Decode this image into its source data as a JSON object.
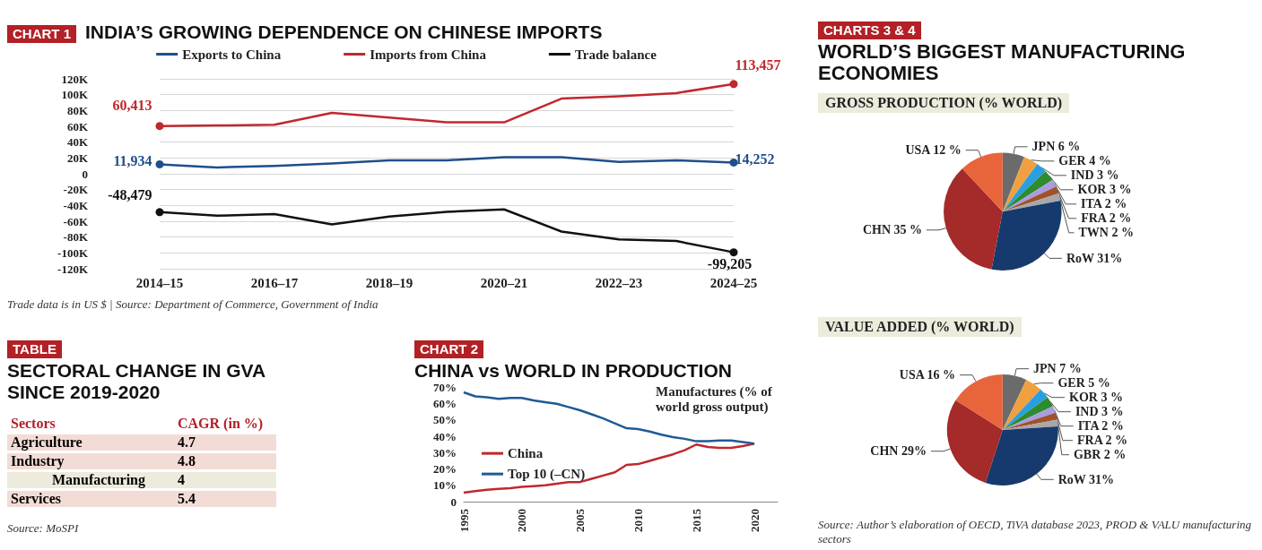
{
  "chart_data": [
    {
      "type": "line",
      "title": "INDIA’S GROWING DEPENDENCE ON CHINESE IMPORTS",
      "annotations": [
        "CHART 1",
        "Trade data is in US $  |  Source: Department of Commerce, Government of India"
      ],
      "categories": [
        "2014–15",
        null,
        "2016–17",
        null,
        "2018–19",
        null,
        "2020–21",
        null,
        "2022–23",
        null,
        "2024–25"
      ],
      "series": [
        {
          "name": "Exports to China",
          "color": "#1f4e8c",
          "values": [
            11934,
            8000,
            10000,
            13000,
            17000,
            17000,
            21000,
            21000,
            15000,
            17000,
            14252
          ],
          "value_labels": [
            "11,934",
            null,
            null,
            null,
            null,
            null,
            null,
            null,
            null,
            null,
            "14,252"
          ]
        },
        {
          "name": "Imports from China",
          "color": "#c0282d",
          "values": [
            60413,
            61000,
            62000,
            77000,
            71000,
            65000,
            65000,
            95000,
            98000,
            102000,
            113457
          ],
          "value_labels": [
            "60,413",
            null,
            null,
            null,
            null,
            null,
            null,
            null,
            null,
            null,
            "113,457"
          ]
        },
        {
          "name": "Trade balance",
          "color": "#111111",
          "values": [
            -48479,
            -53000,
            -51000,
            -64000,
            -54000,
            -48000,
            -45000,
            -73000,
            -83000,
            -85000,
            -99205
          ],
          "value_labels": [
            "-48,479",
            null,
            null,
            null,
            null,
            null,
            null,
            null,
            null,
            null,
            "-99,205"
          ]
        }
      ],
      "ylim": [
        -120000,
        120000
      ],
      "yticks": [
        {
          "value": -120000,
          "label": "-120K"
        },
        {
          "value": -100000,
          "label": "-100K"
        },
        {
          "value": -80000,
          "label": "-80K"
        },
        {
          "value": -60000,
          "label": "-60K"
        },
        {
          "value": -40000,
          "label": "-40K"
        },
        {
          "value": -20000,
          "label": "-20K"
        },
        0,
        {
          "value": 20000,
          "label": "20K"
        },
        {
          "value": 40000,
          "label": "40K"
        },
        {
          "value": 60000,
          "label": "60K"
        },
        {
          "value": 80000,
          "label": "80K"
        },
        {
          "value": 100000,
          "label": "100K"
        },
        {
          "value": 120000,
          "label": "120K"
        }
      ],
      "grid": "y",
      "legend": "top"
    },
    {
      "type": "other",
      "title": "SECTORAL CHANGE IN GVA SINCE 2019-2020",
      "annotations": [
        "TABLE",
        "Source: MoSPI"
      ],
      "xlabel": "Sectors",
      "ylabel": "CAGR (in %)",
      "categories": [
        "Agriculture",
        "Industry",
        "Manufacturing",
        "Services"
      ],
      "values": [
        4.7,
        4.8,
        4,
        5.4
      ],
      "data_labels": true
    },
    {
      "type": "line",
      "title": "CHINA vs WORLD IN PRODUCTION",
      "annotations": [
        "CHART 2",
        "Manufactures (% of world gross output)"
      ],
      "x": [
        1995,
        1996,
        1997,
        1998,
        1999,
        2000,
        2001,
        2002,
        2003,
        2004,
        2005,
        2006,
        2007,
        2008,
        2009,
        2010,
        2011,
        2012,
        2013,
        2014,
        2015,
        2016,
        2017,
        2018,
        2019,
        2020
      ],
      "series": [
        {
          "name": "China",
          "color": "#c0282d",
          "values": [
            5.5,
            6.5,
            7.3,
            7.8,
            8.3,
            9,
            9.5,
            10,
            11,
            12,
            12,
            14,
            16,
            18,
            22.5,
            23,
            25,
            27,
            29,
            31.5,
            35,
            33.5,
            33,
            33,
            34,
            35.5
          ]
        },
        {
          "name": "Top 10 (–CN)",
          "color": "#1f5a96",
          "values": [
            67,
            64.5,
            64,
            63,
            63.5,
            63.5,
            62,
            61,
            60,
            58,
            56,
            53.5,
            51,
            48,
            45,
            44.5,
            43,
            41,
            39.5,
            38.5,
            37,
            37,
            37.5,
            37.5,
            36.5,
            35.5
          ]
        }
      ],
      "xlim": [
        1995,
        2022
      ],
      "xticks": [
        1995,
        2000,
        2005,
        2010,
        2015,
        2020
      ],
      "ylim": [
        0,
        70
      ],
      "yticks": [
        {
          "value": 0,
          "label": "0"
        },
        {
          "value": 10,
          "label": "10%"
        },
        {
          "value": 20,
          "label": "20%"
        },
        {
          "value": 30,
          "label": "30%"
        },
        {
          "value": 40,
          "label": "40%"
        },
        {
          "value": 50,
          "label": "50%"
        },
        {
          "value": 60,
          "label": "60%"
        },
        {
          "value": 70,
          "label": "70%"
        }
      ],
      "grid": false,
      "legend": "left"
    },
    {
      "type": "pie",
      "title": "WORLD’S BIGGEST MANUFACTURING ECONOMIES",
      "subtitle": "GROSS PRODUCTION (% WORLD)",
      "annotations": [
        "CHARTS 3 & 4"
      ],
      "categories": [
        "JPN",
        "GER",
        "IND",
        "KOR",
        "ITA",
        "FRA",
        "TWN",
        "RoW",
        "CHN",
        "USA"
      ],
      "values": [
        6,
        4,
        3,
        3,
        2,
        2,
        2,
        31,
        35,
        12
      ],
      "value_labels": [
        "6 %",
        "4 %",
        "3 %",
        "3 %",
        "2 %",
        "2 %",
        "2 %",
        "31%",
        "35 %",
        "12 %"
      ],
      "colors": [
        "#6b6b6b",
        "#f0a040",
        "#2a9fe0",
        "#2e8b2e",
        "#a99de0",
        "#a0522d",
        "#a8a8a8",
        "#163a6e",
        "#a52a2a",
        "#e8653c"
      ]
    },
    {
      "type": "pie",
      "subtitle": "VALUE ADDED (% WORLD)",
      "annotations": [
        "Source: Author’s elaboration of OECD, TiVA database 2023, PROD & VALU manufacturing sectors"
      ],
      "categories": [
        "JPN",
        "GER",
        "KOR",
        "IND",
        "ITA",
        "FRA",
        "GBR",
        "RoW",
        "CHN",
        "USA"
      ],
      "values": [
        7,
        5,
        3,
        3,
        2,
        2,
        2,
        31,
        29,
        16
      ],
      "value_labels": [
        "7 %",
        "5 %",
        "3 %",
        "3 %",
        "2 %",
        "2 %",
        "2 %",
        "31%",
        "29%",
        "16 %"
      ],
      "colors": [
        "#6b6b6b",
        "#f0a040",
        "#2a9fe0",
        "#2e8b2e",
        "#a99de0",
        "#a0522d",
        "#a8a8a8",
        "#163a6e",
        "#a52a2a",
        "#e8653c"
      ]
    }
  ]
}
